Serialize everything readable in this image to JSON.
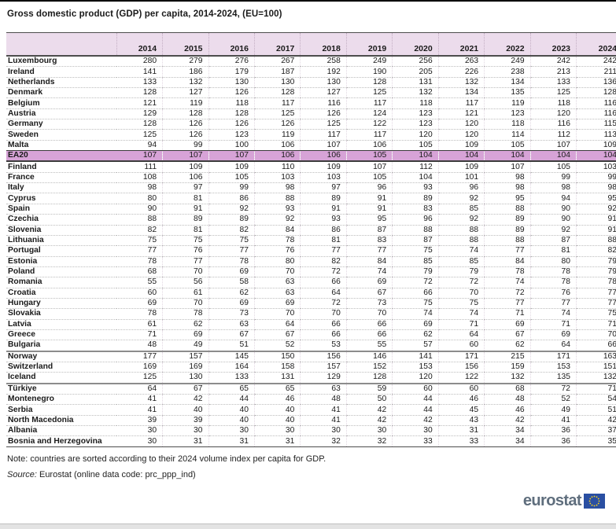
{
  "page": {
    "title": "Gross domestic product (GDP) per capita, 2014-2024, (EU=100)",
    "note": "Note: countries are sorted according to their 2024 volume index per capita for GDP.",
    "source_label": "Source:",
    "source_text": " Eurostat (online data code: prc_ppp_ind)",
    "logo_text": "eurostat"
  },
  "colors": {
    "header_bg": "#ecdcec",
    "highlight_bg": "#d7a3d7",
    "logo_text": "#5f6e7d",
    "flag_blue": "#2a4fa2",
    "flag_stars": "#ffd617"
  },
  "chart_data": {
    "type": "table",
    "title": "Gross domestic product (GDP) per capita, 2014-2024, (EU=100)",
    "columns": [
      "2014",
      "2015",
      "2016",
      "2017",
      "2018",
      "2019",
      "2020",
      "2021",
      "2022",
      "2023",
      "2024"
    ],
    "highlight_row": "EA20",
    "group_separators_after": [
      "Bulgaria",
      "Iceland"
    ],
    "rows": [
      {
        "name": "Luxembourg",
        "values": [
          280,
          279,
          276,
          267,
          258,
          249,
          256,
          263,
          249,
          242,
          242
        ]
      },
      {
        "name": "Ireland",
        "values": [
          141,
          186,
          179,
          187,
          192,
          190,
          205,
          226,
          238,
          213,
          211
        ]
      },
      {
        "name": "Netherlands",
        "values": [
          133,
          132,
          130,
          130,
          130,
          128,
          131,
          132,
          134,
          133,
          136
        ]
      },
      {
        "name": "Denmark",
        "values": [
          128,
          127,
          126,
          128,
          127,
          125,
          132,
          134,
          135,
          125,
          128
        ]
      },
      {
        "name": "Belgium",
        "values": [
          121,
          119,
          118,
          117,
          116,
          117,
          118,
          117,
          119,
          118,
          116
        ]
      },
      {
        "name": "Austria",
        "values": [
          129,
          128,
          128,
          125,
          126,
          124,
          123,
          121,
          123,
          120,
          116
        ]
      },
      {
        "name": "Germany",
        "values": [
          128,
          126,
          126,
          126,
          125,
          122,
          123,
          120,
          118,
          116,
          115
        ]
      },
      {
        "name": "Sweden",
        "values": [
          125,
          126,
          123,
          119,
          117,
          117,
          120,
          120,
          114,
          112,
          113
        ]
      },
      {
        "name": "Malta",
        "values": [
          94,
          99,
          100,
          106,
          107,
          106,
          105,
          109,
          105,
          107,
          109
        ]
      },
      {
        "name": "EA20",
        "values": [
          107,
          107,
          107,
          106,
          106,
          105,
          104,
          104,
          104,
          104,
          104
        ],
        "highlight": true
      },
      {
        "name": "Finland",
        "values": [
          111,
          109,
          109,
          110,
          109,
          107,
          112,
          109,
          107,
          105,
          103
        ]
      },
      {
        "name": "France",
        "values": [
          108,
          106,
          105,
          103,
          103,
          105,
          104,
          101,
          98,
          99,
          99
        ]
      },
      {
        "name": "Italy",
        "values": [
          98,
          97,
          99,
          98,
          97,
          96,
          93,
          96,
          98,
          98,
          98
        ]
      },
      {
        "name": "Cyprus",
        "values": [
          80,
          81,
          86,
          88,
          89,
          91,
          89,
          92,
          95,
          94,
          95
        ]
      },
      {
        "name": "Spain",
        "values": [
          90,
          91,
          92,
          93,
          91,
          91,
          83,
          85,
          88,
          90,
          92
        ]
      },
      {
        "name": "Czechia",
        "values": [
          88,
          89,
          89,
          92,
          93,
          95,
          96,
          92,
          89,
          90,
          91
        ]
      },
      {
        "name": "Slovenia",
        "values": [
          82,
          81,
          82,
          84,
          86,
          87,
          88,
          88,
          89,
          92,
          91
        ]
      },
      {
        "name": "Lithuania",
        "values": [
          75,
          75,
          75,
          78,
          81,
          83,
          87,
          88,
          88,
          87,
          88
        ]
      },
      {
        "name": "Portugal",
        "values": [
          77,
          76,
          77,
          76,
          77,
          77,
          75,
          74,
          77,
          81,
          82
        ]
      },
      {
        "name": "Estonia",
        "values": [
          78,
          77,
          78,
          80,
          82,
          84,
          85,
          85,
          84,
          80,
          79
        ]
      },
      {
        "name": "Poland",
        "values": [
          68,
          70,
          69,
          70,
          72,
          74,
          79,
          79,
          78,
          78,
          79
        ]
      },
      {
        "name": "Romania",
        "values": [
          55,
          56,
          58,
          63,
          66,
          69,
          72,
          72,
          74,
          78,
          78
        ]
      },
      {
        "name": "Croatia",
        "values": [
          60,
          61,
          62,
          63,
          64,
          67,
          66,
          70,
          72,
          76,
          77
        ]
      },
      {
        "name": "Hungary",
        "values": [
          69,
          70,
          69,
          69,
          72,
          73,
          75,
          75,
          77,
          77,
          77
        ]
      },
      {
        "name": "Slovakia",
        "values": [
          78,
          78,
          73,
          70,
          70,
          70,
          74,
          74,
          71,
          74,
          75
        ]
      },
      {
        "name": "Latvia",
        "values": [
          61,
          62,
          63,
          64,
          66,
          66,
          69,
          71,
          69,
          71,
          71
        ]
      },
      {
        "name": "Greece",
        "values": [
          71,
          69,
          67,
          67,
          66,
          66,
          62,
          64,
          67,
          69,
          70
        ]
      },
      {
        "name": "Bulgaria",
        "values": [
          48,
          49,
          51,
          52,
          53,
          55,
          57,
          60,
          62,
          64,
          66
        ],
        "sep_after": true
      },
      {
        "name": "Norway",
        "values": [
          177,
          157,
          145,
          150,
          156,
          146,
          141,
          171,
          215,
          171,
          163
        ]
      },
      {
        "name": "Switzerland",
        "values": [
          169,
          169,
          164,
          158,
          157,
          152,
          153,
          156,
          159,
          153,
          151
        ]
      },
      {
        "name": "Iceland",
        "values": [
          125,
          130,
          133,
          131,
          129,
          128,
          120,
          122,
          132,
          135,
          132
        ],
        "sep_after": true
      },
      {
        "name": "Türkiye",
        "values": [
          64,
          67,
          65,
          65,
          63,
          59,
          60,
          60,
          68,
          72,
          71
        ]
      },
      {
        "name": "Montenegro",
        "values": [
          41,
          42,
          44,
          46,
          48,
          50,
          44,
          46,
          48,
          52,
          54
        ]
      },
      {
        "name": "Serbia",
        "values": [
          41,
          40,
          40,
          40,
          41,
          42,
          44,
          45,
          46,
          49,
          51
        ]
      },
      {
        "name": "North Macedonia",
        "values": [
          39,
          39,
          40,
          40,
          41,
          42,
          42,
          43,
          42,
          41,
          42
        ]
      },
      {
        "name": "Albania",
        "values": [
          30,
          30,
          30,
          30,
          30,
          30,
          30,
          31,
          34,
          36,
          37
        ]
      },
      {
        "name": "Bosnia and Herzegovina",
        "values": [
          30,
          31,
          31,
          31,
          32,
          32,
          33,
          33,
          34,
          36,
          35
        ]
      }
    ]
  }
}
